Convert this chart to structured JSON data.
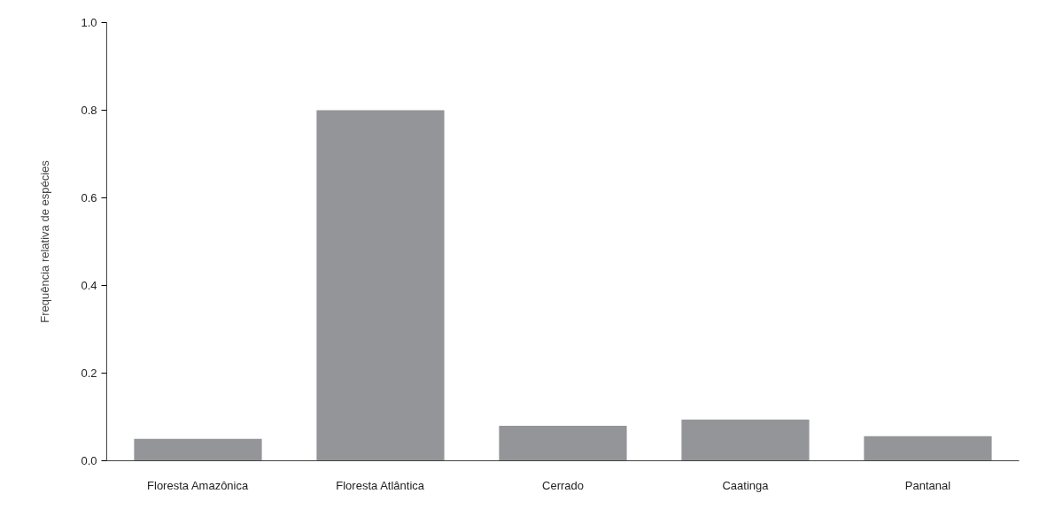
{
  "chart_data": {
    "type": "bar",
    "ylabel": "Frequência relativa de espécies",
    "categories": [
      "Floresta Amazônica",
      "Floresta Atlântica",
      "Cerrado",
      "Caatinga",
      "Pantanal"
    ],
    "values": [
      0.05,
      0.8,
      0.08,
      0.094,
      0.056
    ],
    "color": "#939598",
    "ylim": [
      0,
      1
    ],
    "yticks": [
      {
        "value": 0,
        "label": "0.0"
      },
      {
        "value": 0.2,
        "label": "0.2"
      },
      {
        "value": 0.4,
        "label": "0.4"
      },
      {
        "value": 0.6,
        "label": "0.6"
      },
      {
        "value": 0.8,
        "label": "0.8"
      },
      {
        "value": 1,
        "label": "1.0"
      }
    ],
    "grid": false
  }
}
